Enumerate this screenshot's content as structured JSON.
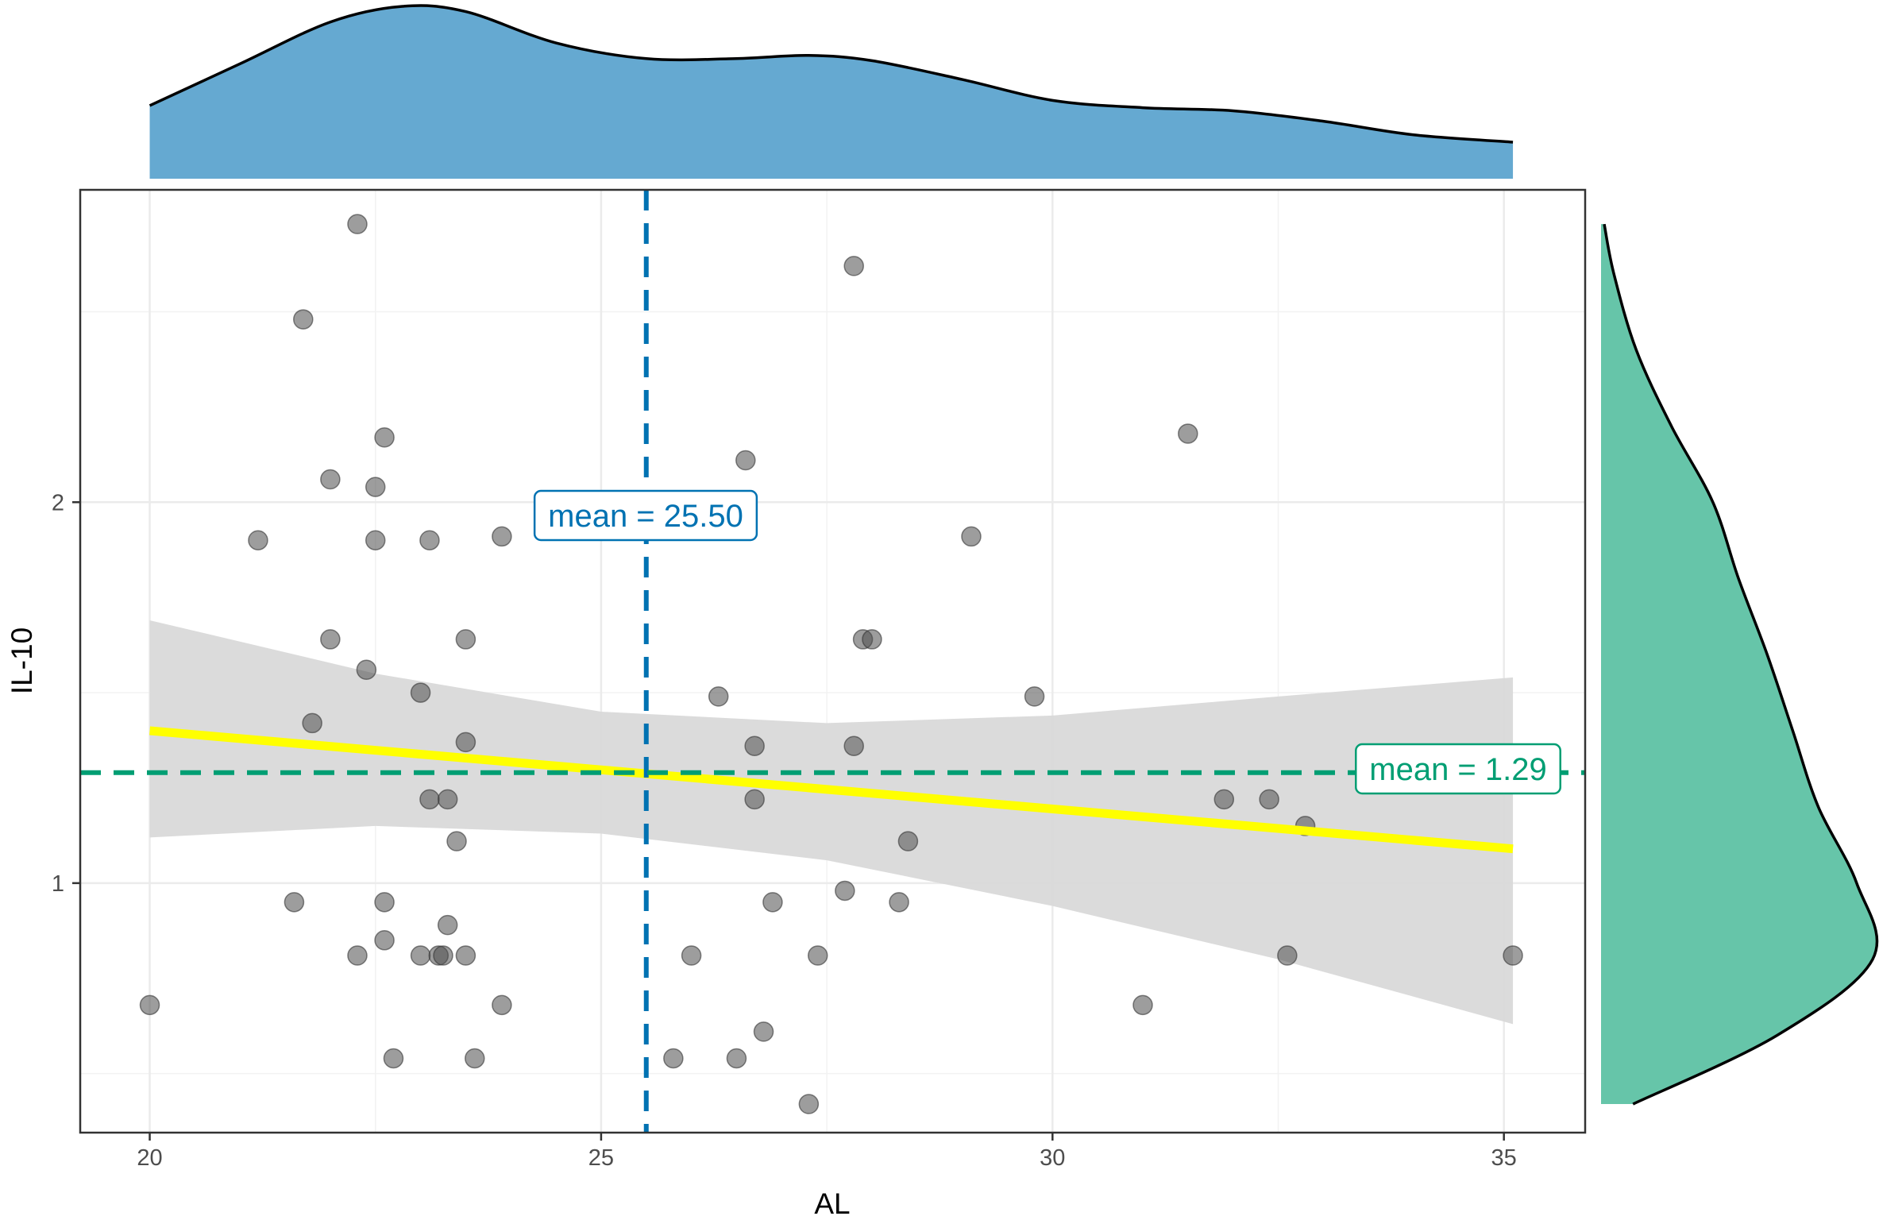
{
  "chart_data": {
    "type": "scatter",
    "xlabel": "AL",
    "ylabel": "IL-10",
    "xlim": [
      19.23,
      35.9
    ],
    "ylim": [
      0.345,
      2.82
    ],
    "x_ticks": [
      20,
      25,
      30,
      35
    ],
    "y_ticks": [
      1,
      2
    ],
    "grid": true,
    "points": [
      {
        "x": 22.3,
        "y": 2.73
      },
      {
        "x": 27.8,
        "y": 2.62
      },
      {
        "x": 21.7,
        "y": 2.48
      },
      {
        "x": 22.6,
        "y": 2.17
      },
      {
        "x": 31.5,
        "y": 2.18
      },
      {
        "x": 26.6,
        "y": 2.11
      },
      {
        "x": 22.0,
        "y": 2.06
      },
      {
        "x": 22.5,
        "y": 2.04
      },
      {
        "x": 21.2,
        "y": 1.9
      },
      {
        "x": 22.5,
        "y": 1.9
      },
      {
        "x": 23.1,
        "y": 1.9
      },
      {
        "x": 23.9,
        "y": 1.91
      },
      {
        "x": 29.1,
        "y": 1.91
      },
      {
        "x": 22.0,
        "y": 1.64
      },
      {
        "x": 23.5,
        "y": 1.64
      },
      {
        "x": 27.9,
        "y": 1.64
      },
      {
        "x": 28.0,
        "y": 1.64
      },
      {
        "x": 22.4,
        "y": 1.56
      },
      {
        "x": 23.0,
        "y": 1.5
      },
      {
        "x": 26.3,
        "y": 1.49
      },
      {
        "x": 29.8,
        "y": 1.49
      },
      {
        "x": 21.8,
        "y": 1.42
      },
      {
        "x": 23.5,
        "y": 1.37
      },
      {
        "x": 26.7,
        "y": 1.36
      },
      {
        "x": 27.8,
        "y": 1.36
      },
      {
        "x": 23.1,
        "y": 1.22
      },
      {
        "x": 23.3,
        "y": 1.22
      },
      {
        "x": 26.7,
        "y": 1.22
      },
      {
        "x": 31.9,
        "y": 1.22
      },
      {
        "x": 32.4,
        "y": 1.22
      },
      {
        "x": 32.8,
        "y": 1.15
      },
      {
        "x": 23.4,
        "y": 1.11
      },
      {
        "x": 28.4,
        "y": 1.11
      },
      {
        "x": 21.6,
        "y": 0.95
      },
      {
        "x": 22.6,
        "y": 0.95
      },
      {
        "x": 26.9,
        "y": 0.95
      },
      {
        "x": 27.7,
        "y": 0.98
      },
      {
        "x": 28.3,
        "y": 0.95
      },
      {
        "x": 23.3,
        "y": 0.89
      },
      {
        "x": 22.6,
        "y": 0.85
      },
      {
        "x": 22.3,
        "y": 0.81
      },
      {
        "x": 23.0,
        "y": 0.81
      },
      {
        "x": 23.2,
        "y": 0.81
      },
      {
        "x": 23.25,
        "y": 0.81
      },
      {
        "x": 23.5,
        "y": 0.81
      },
      {
        "x": 26.0,
        "y": 0.81
      },
      {
        "x": 27.4,
        "y": 0.81
      },
      {
        "x": 32.6,
        "y": 0.81
      },
      {
        "x": 35.1,
        "y": 0.81
      },
      {
        "x": 20.0,
        "y": 0.68
      },
      {
        "x": 23.9,
        "y": 0.68
      },
      {
        "x": 31.0,
        "y": 0.68
      },
      {
        "x": 26.8,
        "y": 0.61
      },
      {
        "x": 22.7,
        "y": 0.54
      },
      {
        "x": 23.6,
        "y": 0.54
      },
      {
        "x": 25.8,
        "y": 0.54
      },
      {
        "x": 26.5,
        "y": 0.54
      },
      {
        "x": 27.3,
        "y": 0.42
      }
    ],
    "fit_line": {
      "x": [
        20.0,
        35.1
      ],
      "y": [
        1.4,
        1.09
      ],
      "color": "#ffff00"
    },
    "confidence_band": {
      "x": [
        20.0,
        22.5,
        25.0,
        27.5,
        30.0,
        32.5,
        35.1
      ],
      "upper": [
        1.69,
        1.55,
        1.45,
        1.42,
        1.44,
        1.49,
        1.54
      ],
      "lower": [
        1.12,
        1.15,
        1.13,
        1.06,
        0.94,
        0.8,
        0.63
      ],
      "color": "#d9d9d9"
    },
    "mean_x": {
      "value": 25.5,
      "label": "mean = 25.50",
      "color": "#0072b2"
    },
    "mean_y": {
      "value": 1.29,
      "label": "mean = 1.29",
      "color": "#009e73"
    },
    "marginal_x": {
      "x": [
        20.0,
        21.0,
        22.0,
        22.8,
        23.5,
        24.5,
        25.5,
        26.5,
        27.3,
        28.0,
        29.0,
        30.0,
        31.0,
        32.0,
        33.0,
        34.0,
        35.1
      ],
      "density": [
        0.07,
        0.11,
        0.15,
        0.165,
        0.16,
        0.13,
        0.115,
        0.115,
        0.118,
        0.113,
        0.095,
        0.075,
        0.068,
        0.065,
        0.055,
        0.042,
        0.035
      ],
      "color": "#65a9d1"
    },
    "marginal_y": {
      "y": [
        0.42,
        0.6,
        0.8,
        1.0,
        1.2,
        1.4,
        1.6,
        1.8,
        2.0,
        2.2,
        2.4,
        2.6,
        2.73
      ],
      "density": [
        0.1,
        0.55,
        0.85,
        0.8,
        0.68,
        0.6,
        0.52,
        0.43,
        0.35,
        0.22,
        0.11,
        0.04,
        0.01
      ],
      "color": "#66c5a9"
    }
  }
}
